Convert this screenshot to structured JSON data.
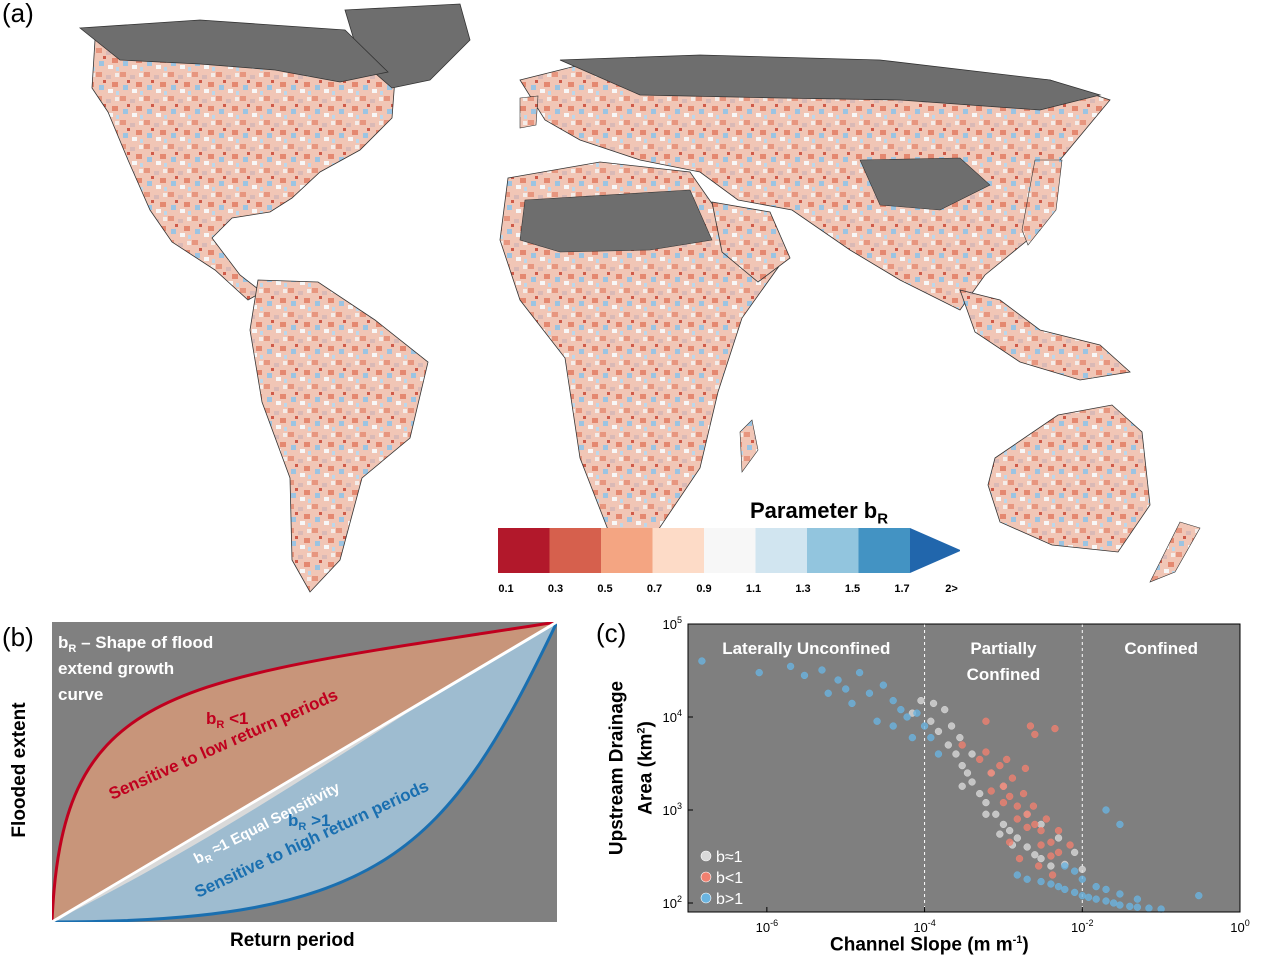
{
  "panel_labels": {
    "a": "(a)",
    "b": "(b)",
    "c": "(c)"
  },
  "colorbar": {
    "title_main": "Parameter b",
    "title_sub": "R",
    "ticks": [
      "0.1",
      "0.3",
      "0.5",
      "0.7",
      "0.9",
      "1.1",
      "1.3",
      "1.5",
      "1.7",
      "2>"
    ],
    "colors": [
      "#b2182b",
      "#d6604d",
      "#f4a582",
      "#fddbc7",
      "#f7f7f7",
      "#d1e5f0",
      "#92c5de",
      "#4393c3",
      "#2166ac"
    ]
  },
  "panel_b": {
    "title_line1_sub": "R",
    "title_line1": " – Shape of flood",
    "title_line2": "extend growth",
    "title_line3": "curve",
    "title_b": "b",
    "low_label_sub": "R",
    "low_label": " <1",
    "low_desc": "Sensitive to low return periods",
    "equal_sub": "R",
    "equal_label": " ≈1 Equal Sensitivity",
    "high_label_sub": "R",
    "high_label": " >1",
    "high_desc": "Sensitive to high return periods",
    "xlabel": "Return period",
    "ylabel": "Flooded extent",
    "colors": {
      "low": "#c0001e",
      "high": "#1a6fb0",
      "equal": "#ffffff",
      "bg": "#808080"
    }
  },
  "chart_data": {
    "type": "scatter",
    "xlabel": "Channel Slope (m m",
    "xlabel_sup": "-1",
    "xlabel_end": ")",
    "ylabel_line1": "Upstream Drainage",
    "ylabel_line2": "Area (km",
    "ylabel_sup": "2",
    "ylabel_end": ")",
    "x_scale": "log",
    "y_scale": "log",
    "xlim": [
      1e-07,
      1
    ],
    "ylim": [
      80,
      100000
    ],
    "x_ticks": [
      {
        "base": "10",
        "exp": "-6"
      },
      {
        "base": "10",
        "exp": "-4"
      },
      {
        "base": "10",
        "exp": "-2"
      },
      {
        "base": "10",
        "exp": "0"
      }
    ],
    "y_ticks": [
      {
        "base": "10",
        "exp": "2"
      },
      {
        "base": "10",
        "exp": "3"
      },
      {
        "base": "10",
        "exp": "4"
      },
      {
        "base": "10",
        "exp": "5"
      }
    ],
    "zone_boundaries_x": [
      0.0001,
      0.01
    ],
    "zones": [
      "Laterally Unconfined",
      "Partially",
      "Confined",
      "Confined"
    ],
    "legend": [
      {
        "label": "b≈1",
        "color": "#d9d9d9"
      },
      {
        "label": "b<1",
        "color": "#f08070"
      },
      {
        "label": "b>1",
        "color": "#6ab4e0"
      }
    ],
    "series": [
      {
        "name": "b≈1",
        "color": "#d9d9d9",
        "points": [
          [
            0.00012,
            9000
          ],
          [
            0.00015,
            7000
          ],
          [
            0.0002,
            5000
          ],
          [
            0.00025,
            4000
          ],
          [
            0.0003,
            3000
          ],
          [
            0.00035,
            2500
          ],
          [
            0.0004,
            2000
          ],
          [
            0.0005,
            1500
          ],
          [
            0.0006,
            1200
          ],
          [
            0.0008,
            900
          ],
          [
            0.001,
            700
          ],
          [
            0.0012,
            600
          ],
          [
            0.0015,
            500
          ],
          [
            0.002,
            400
          ],
          [
            0.003,
            300
          ],
          [
            0.004,
            250
          ],
          [
            0.00018,
            12000
          ],
          [
            0.00022,
            8000
          ],
          [
            0.00028,
            6000
          ],
          [
            0.0004,
            4000
          ],
          [
            0.0007,
            2500
          ],
          [
            0.001,
            1800
          ],
          [
            0.002,
            900
          ],
          [
            0.003,
            700
          ],
          [
            0.005,
            500
          ],
          [
            0.008,
            350
          ],
          [
            9e-05,
            15000
          ],
          [
            7e-05,
            11000
          ],
          [
            0.00013,
            14000
          ],
          [
            0.0003,
            1800
          ],
          [
            0.0006,
            900
          ],
          [
            0.0009,
            550
          ],
          [
            0.0013,
            420
          ],
          [
            0.0025,
            330
          ],
          [
            0.006,
            260
          ],
          [
            0.01,
            230
          ]
        ]
      },
      {
        "name": "b<1",
        "color": "#f08070",
        "points": [
          [
            0.0003,
            5000
          ],
          [
            0.0005,
            3500
          ],
          [
            0.0007,
            2500
          ],
          [
            0.001,
            1800
          ],
          [
            0.0012,
            1400
          ],
          [
            0.0015,
            1100
          ],
          [
            0.002,
            900
          ],
          [
            0.0025,
            700
          ],
          [
            0.003,
            600
          ],
          [
            0.004,
            450
          ],
          [
            0.005,
            350
          ],
          [
            0.0007,
            1600
          ],
          [
            0.001,
            1200
          ],
          [
            0.0015,
            800
          ],
          [
            0.002,
            650
          ],
          [
            0.003,
            420
          ],
          [
            0.004,
            320
          ],
          [
            0.0006,
            4200
          ],
          [
            0.0009,
            3000
          ],
          [
            0.0013,
            2200
          ],
          [
            0.0018,
            1500
          ],
          [
            0.0024,
            1100
          ],
          [
            0.0035,
            800
          ],
          [
            0.005,
            600
          ],
          [
            0.007,
            420
          ],
          [
            0.0022,
            8000
          ],
          [
            0.0025,
            6500
          ],
          [
            0.0045,
            7500
          ],
          [
            0.0006,
            9000
          ],
          [
            0.0012,
            450
          ],
          [
            0.0016,
            300
          ],
          [
            0.0028,
            250
          ],
          [
            0.0042,
            200
          ],
          [
            0.0011,
            3500
          ],
          [
            0.0019,
            2800
          ]
        ]
      },
      {
        "name": "b>1",
        "color": "#6ab4e0",
        "points": [
          [
            1.5e-07,
            40000
          ],
          [
            8e-07,
            30000
          ],
          [
            2e-06,
            35000
          ],
          [
            3e-06,
            28000
          ],
          [
            5e-06,
            32000
          ],
          [
            8e-06,
            25000
          ],
          [
            1e-05,
            20000
          ],
          [
            1.5e-05,
            30000
          ],
          [
            2e-05,
            18000
          ],
          [
            3e-05,
            22000
          ],
          [
            4e-05,
            15000
          ],
          [
            5e-05,
            12000
          ],
          [
            6e-05,
            10000
          ],
          [
            8e-05,
            11000
          ],
          [
            0.0001,
            8000
          ],
          [
            0.00012,
            6000
          ],
          [
            0.0015,
            200
          ],
          [
            0.002,
            180
          ],
          [
            0.003,
            170
          ],
          [
            0.004,
            160
          ],
          [
            0.005,
            150
          ],
          [
            0.006,
            140
          ],
          [
            0.008,
            130
          ],
          [
            0.01,
            120
          ],
          [
            0.012,
            115
          ],
          [
            0.015,
            110
          ],
          [
            0.02,
            105
          ],
          [
            0.025,
            100
          ],
          [
            0.03,
            95
          ],
          [
            0.04,
            92
          ],
          [
            0.05,
            90
          ],
          [
            0.07,
            88
          ],
          [
            0.1,
            86
          ],
          [
            0.3,
            120
          ],
          [
            0.01,
            180
          ],
          [
            0.015,
            150
          ],
          [
            0.02,
            140
          ],
          [
            0.03,
            125
          ],
          [
            0.05,
            110
          ],
          [
            0.008,
            220
          ],
          [
            0.006,
            250
          ],
          [
            2.5e-05,
            9000
          ],
          [
            1.2e-05,
            14000
          ],
          [
            6e-06,
            18000
          ],
          [
            4e-05,
            8000
          ],
          [
            7e-05,
            6000
          ],
          [
            0.02,
            1000
          ],
          [
            0.03,
            700
          ],
          [
            0.00015,
            4000
          ]
        ]
      }
    ]
  }
}
